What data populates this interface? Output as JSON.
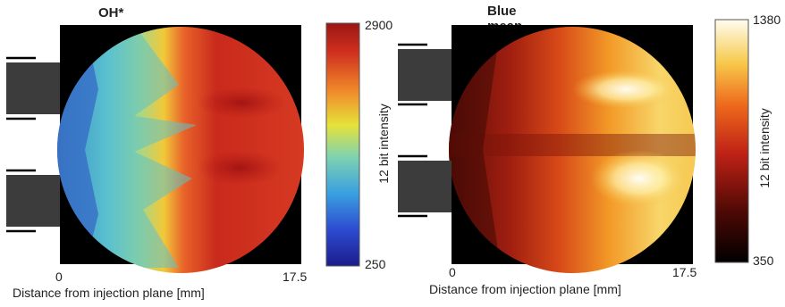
{
  "panels": [
    {
      "title": "OH* mean image",
      "x_min_label": "0",
      "x_max_label": "17.5",
      "xlabel": "Distance from injection plane [mm]",
      "colorbar": {
        "label": "12 bit intensity",
        "max_label": "2900",
        "min_label": "250",
        "colormap": "jet"
      }
    },
    {
      "title": "Blue mean image",
      "x_min_label": "0",
      "x_max_label": "17.5",
      "xlabel": "Distance from injection plane [mm]",
      "colorbar": {
        "label": "12 bit intensity",
        "max_label": "1380",
        "min_label": "350",
        "colormap": "hot"
      }
    }
  ],
  "colors": {
    "injector": "#3c3c3c",
    "background": "#000000",
    "jet_high": "#c21f17",
    "jet_mid": "#f4d21e",
    "jet_low": "#2e2ea0",
    "hot_high": "#fffbe6",
    "hot_low": "#000000"
  }
}
